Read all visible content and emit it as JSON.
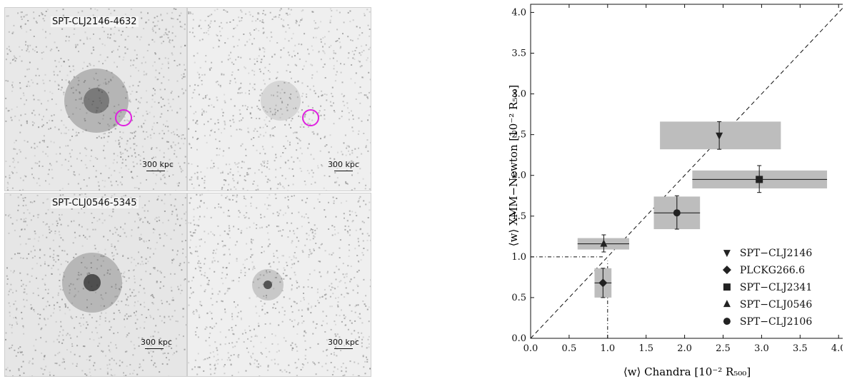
{
  "images": {
    "top_label": "SPT-CLJ2146-4632",
    "bottom_label": "SPT-CLJ0546-5345",
    "scale_text": "300 kpc"
  },
  "chart_data": {
    "type": "scatter",
    "xlabel": "⟨w⟩  Chandra  [10⁻² R₅₀₀]",
    "ylabel": "⟨w⟩  XMM−Newton  [10⁻² R₅₀₀]",
    "xlim": [
      0.0,
      4.1
    ],
    "ylim": [
      0.0,
      4.1
    ],
    "xticks": [
      "0.0",
      "0.5",
      "1.0",
      "1.5",
      "2.0",
      "2.5",
      "3.0",
      "3.5",
      "4.0"
    ],
    "yticks": [
      "0.0",
      "0.5",
      "1.0",
      "1.5",
      "2.0",
      "2.5",
      "3.0",
      "3.5",
      "4.0"
    ],
    "legend_position": "bottom-right",
    "points": [
      {
        "name": "SPT−CLJ2146",
        "marker": "triangle-down",
        "x": 2.45,
        "y": 2.49,
        "xbox": [
          1.68,
          3.25
        ],
        "ybox": [
          2.32,
          2.66
        ],
        "xerr": [
          2.45,
          2.45
        ],
        "yerr": [
          2.32,
          2.66
        ],
        "hbar": [
          1.68,
          3.25
        ]
      },
      {
        "name": "PLCKG266.6",
        "marker": "diamond",
        "x": 0.94,
        "y": 0.68,
        "xbox": [
          0.83,
          1.05
        ],
        "ybox": [
          0.5,
          0.86
        ],
        "xerr": [
          0.83,
          1.05
        ],
        "yerr": [
          0.5,
          0.86
        ]
      },
      {
        "name": "SPT−CLJ2341",
        "marker": "square",
        "x": 2.97,
        "y": 1.95,
        "xbox": [
          2.1,
          3.85
        ],
        "ybox": [
          1.84,
          2.06
        ],
        "xerr": [
          2.1,
          3.85
        ],
        "yerr": [
          1.79,
          2.12
        ]
      },
      {
        "name": "SPT−CLJ0546",
        "marker": "triangle-up",
        "x": 0.95,
        "y": 1.16,
        "xbox": [
          0.61,
          1.28
        ],
        "ybox": [
          1.09,
          1.23
        ],
        "xerr": [
          0.61,
          1.28
        ],
        "yerr": [
          1.06,
          1.27
        ]
      },
      {
        "name": "SPT−CLJ2106",
        "marker": "circle",
        "x": 1.9,
        "y": 1.54,
        "xbox": [
          1.6,
          2.2
        ],
        "ybox": [
          1.34,
          1.74
        ],
        "xerr": [
          1.6,
          2.2
        ],
        "yerr": [
          1.34,
          1.75
        ]
      }
    ],
    "reference_lines": [
      "1:1 dashed diagonal",
      "dotted guides at x=1.0 and y=1.0"
    ]
  },
  "colors": {
    "box": "#bdbdbd",
    "ink": "#111111",
    "ring": "#e020e0"
  }
}
